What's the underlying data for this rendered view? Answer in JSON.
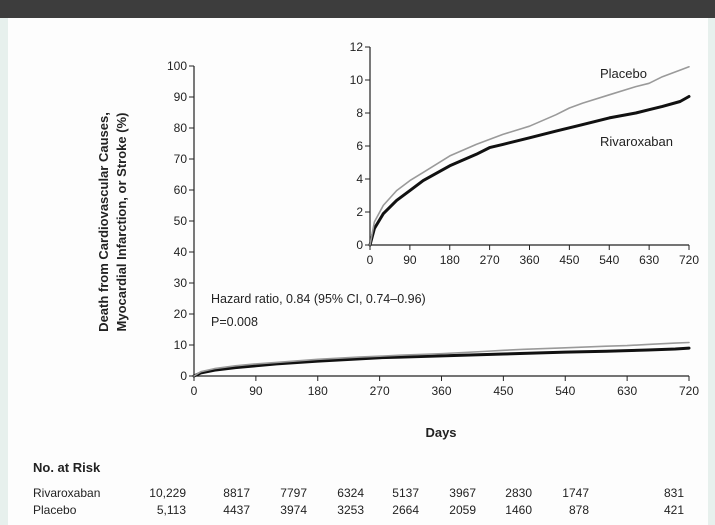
{
  "figure": {
    "colors": {
      "background": "#e7f0ed",
      "panel": "#fdfdfd",
      "top_rule": "#3d3d3d",
      "rivaroxaban": "#111111",
      "placebo": "#9a9a9a",
      "axis": "#222222"
    }
  },
  "chart_data": [
    {
      "type": "line",
      "ylabel_lines": [
        "Death from Cardiovascular Causes,",
        "Myocardial Infarction, or Stroke (%)"
      ],
      "xlabel": "Days",
      "xlim": [
        0,
        720
      ],
      "ylim": [
        0,
        100
      ],
      "x_ticks": [
        "0",
        "90",
        "180",
        "270",
        "360",
        "450",
        "540",
        "630",
        "720"
      ],
      "y_ticks": [
        "0",
        "10",
        "20",
        "30",
        "40",
        "50",
        "60",
        "70",
        "80",
        "90",
        "100"
      ],
      "annotation": [
        "Hazard ratio, 0.84 (95% CI, 0.74–0.96)",
        "P=0.008"
      ],
      "series": [
        {
          "name": "Rivaroxaban",
          "x": [
            0,
            10,
            30,
            60,
            90,
            120,
            180,
            240,
            270,
            300,
            360,
            420,
            450,
            480,
            540,
            600,
            630,
            660,
            700,
            720
          ],
          "y": [
            0,
            1.0,
            1.9,
            2.7,
            3.3,
            3.9,
            4.8,
            5.5,
            5.9,
            6.1,
            6.5,
            6.9,
            7.1,
            7.3,
            7.7,
            8.0,
            8.2,
            8.4,
            8.7,
            9.0
          ]
        },
        {
          "name": "Placebo",
          "x": [
            0,
            10,
            30,
            60,
            90,
            120,
            180,
            240,
            270,
            300,
            360,
            420,
            450,
            480,
            540,
            600,
            630,
            660,
            700,
            720
          ],
          "y": [
            0,
            1.4,
            2.4,
            3.3,
            3.9,
            4.4,
            5.4,
            6.1,
            6.4,
            6.7,
            7.2,
            7.9,
            8.3,
            8.6,
            9.1,
            9.6,
            9.8,
            10.2,
            10.6,
            10.8
          ]
        }
      ]
    },
    {
      "type": "line",
      "xlim": [
        0,
        720
      ],
      "ylim": [
        0,
        12
      ],
      "x_ticks": [
        "0",
        "90",
        "180",
        "270",
        "360",
        "450",
        "540",
        "630",
        "720"
      ],
      "y_ticks": [
        "0",
        "2",
        "4",
        "6",
        "8",
        "10",
        "12"
      ],
      "series": [
        {
          "name": "Rivaroxaban",
          "x": [
            0,
            10,
            30,
            60,
            90,
            120,
            180,
            240,
            270,
            300,
            360,
            420,
            450,
            480,
            540,
            600,
            630,
            660,
            700,
            720
          ],
          "y": [
            0,
            1.0,
            1.9,
            2.7,
            3.3,
            3.9,
            4.8,
            5.5,
            5.9,
            6.1,
            6.5,
            6.9,
            7.1,
            7.3,
            7.7,
            8.0,
            8.2,
            8.4,
            8.7,
            9.0
          ]
        },
        {
          "name": "Placebo",
          "x": [
            0,
            10,
            30,
            60,
            90,
            120,
            180,
            240,
            270,
            300,
            360,
            420,
            450,
            480,
            540,
            600,
            630,
            660,
            700,
            720
          ],
          "y": [
            0,
            1.4,
            2.4,
            3.3,
            3.9,
            4.4,
            5.4,
            6.1,
            6.4,
            6.7,
            7.2,
            7.9,
            8.3,
            8.6,
            9.1,
            9.6,
            9.8,
            10.2,
            10.6,
            10.8
          ]
        }
      ]
    }
  ],
  "risk_table": {
    "title": "No. at Risk",
    "rows": [
      {
        "label": "Rivaroxaban",
        "values": [
          "10,229",
          "8817",
          "7797",
          "6324",
          "5137",
          "3967",
          "2830",
          "1747",
          "831"
        ]
      },
      {
        "label": "Placebo",
        "values": [
          "5,113",
          "4437",
          "3974",
          "3253",
          "2664",
          "2059",
          "1460",
          "878",
          "421"
        ]
      }
    ]
  }
}
